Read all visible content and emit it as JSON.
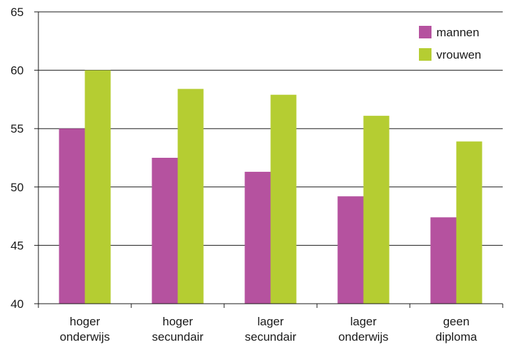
{
  "chart_data": {
    "type": "bar",
    "categories": [
      [
        "hoger",
        "onderwijs"
      ],
      [
        "hoger",
        "secundair"
      ],
      [
        "lager",
        "secundair"
      ],
      [
        "lager",
        "onderwijs"
      ],
      [
        "geen",
        "diploma"
      ]
    ],
    "series": [
      {
        "name": "mannen",
        "color": "#b5529f",
        "values": [
          55.0,
          52.5,
          51.3,
          49.2,
          47.4
        ]
      },
      {
        "name": "vrouwen",
        "color": "#b5cd32",
        "values": [
          60.0,
          58.4,
          57.9,
          56.1,
          53.9
        ]
      }
    ],
    "ylim": [
      40,
      65
    ],
    "yticks": [
      40,
      45,
      50,
      55,
      60,
      65
    ],
    "grid": true,
    "legend_position": "top-right"
  }
}
